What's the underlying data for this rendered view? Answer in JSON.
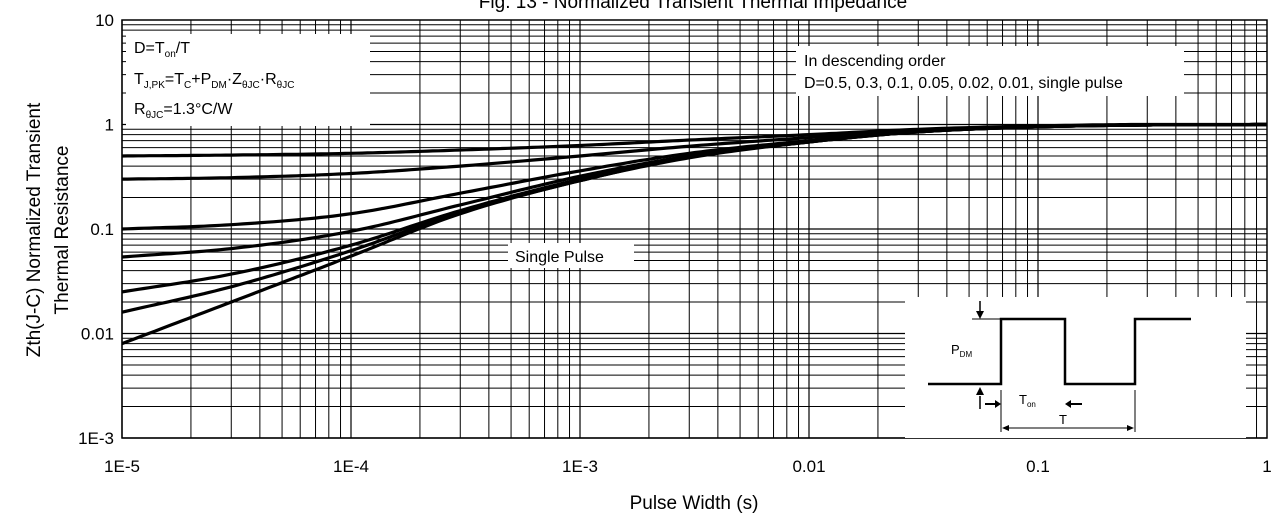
{
  "chart_data": {
    "type": "line",
    "title": "Fig. 13 - Normalized Transient Thermal Impedance",
    "xlabel": "Pulse Width (s)",
    "ylabel_line1": "Zth(J-C) Normalized Transient",
    "ylabel_line2": "Thermal Resistance",
    "xscale": "log",
    "yscale": "log",
    "xlim": [
      1e-05,
      1
    ],
    "ylim": [
      0.001,
      10
    ],
    "grid": true,
    "x_ticks": [
      {
        "value": 1e-05,
        "label": "1E-5"
      },
      {
        "value": 0.0001,
        "label": "1E-4"
      },
      {
        "value": 0.001,
        "label": "1E-3"
      },
      {
        "value": 0.01,
        "label": "0.01"
      },
      {
        "value": 0.1,
        "label": "0.1"
      },
      {
        "value": 1,
        "label": "1"
      }
    ],
    "y_ticks": [
      {
        "value": 0.001,
        "label": "1E-3"
      },
      {
        "value": 0.01,
        "label": "0.01"
      },
      {
        "value": 0.1,
        "label": "0.1"
      },
      {
        "value": 1,
        "label": "1"
      },
      {
        "value": 10,
        "label": "10"
      }
    ],
    "x": [
      1e-05,
      3e-05,
      0.0001,
      0.0003,
      0.001,
      0.003,
      0.01,
      0.03,
      0.1,
      0.3,
      1
    ],
    "series": [
      {
        "name": "D=0.5",
        "values": [
          0.5,
          0.51,
          0.53,
          0.57,
          0.63,
          0.71,
          0.8,
          0.9,
          0.97,
          1.0,
          1.0
        ]
      },
      {
        "name": "D=0.3",
        "values": [
          0.3,
          0.31,
          0.34,
          0.4,
          0.5,
          0.62,
          0.75,
          0.88,
          0.96,
          0.99,
          1.0
        ]
      },
      {
        "name": "D=0.1",
        "values": [
          0.1,
          0.11,
          0.14,
          0.22,
          0.36,
          0.53,
          0.7,
          0.86,
          0.95,
          0.99,
          1.0
        ]
      },
      {
        "name": "D=0.05",
        "values": [
          0.054,
          0.065,
          0.095,
          0.17,
          0.32,
          0.5,
          0.69,
          0.85,
          0.95,
          0.99,
          1.0
        ]
      },
      {
        "name": "D=0.02",
        "values": [
          0.025,
          0.037,
          0.07,
          0.15,
          0.3,
          0.49,
          0.68,
          0.85,
          0.95,
          0.99,
          1.0
        ]
      },
      {
        "name": "D=0.01",
        "values": [
          0.016,
          0.028,
          0.062,
          0.145,
          0.29,
          0.49,
          0.68,
          0.85,
          0.95,
          0.99,
          1.0
        ]
      },
      {
        "name": "single pulse",
        "values": [
          0.008,
          0.02,
          0.055,
          0.14,
          0.29,
          0.48,
          0.68,
          0.85,
          0.95,
          0.99,
          1.0
        ]
      }
    ],
    "annotations": {
      "formula_box": {
        "line1": {
          "a": "D=T",
          "a_sub": "on",
          "b": "/T"
        },
        "line2": {
          "a": "T",
          "a_sub": "J,PK",
          "b": "=T",
          "b_sub": "C",
          "c": "+P",
          "c_sub": "DM",
          "d": "·Z",
          "d_sub": "θJC",
          "e": "·R",
          "e_sub": "θJC"
        },
        "line3": {
          "a": "R",
          "a_sub": "θJC",
          "b": "=1.3°C/W"
        }
      },
      "order_box": {
        "line1": "In descending order",
        "line2": "D=0.5, 0.3, 0.1, 0.05, 0.02, 0.01, single pulse"
      },
      "single_pulse_label": "Single Pulse",
      "inset": {
        "pdm_main": "P",
        "pdm_sub": "DM",
        "ton_main": "T",
        "ton_sub": "on",
        "period": "T"
      }
    }
  }
}
